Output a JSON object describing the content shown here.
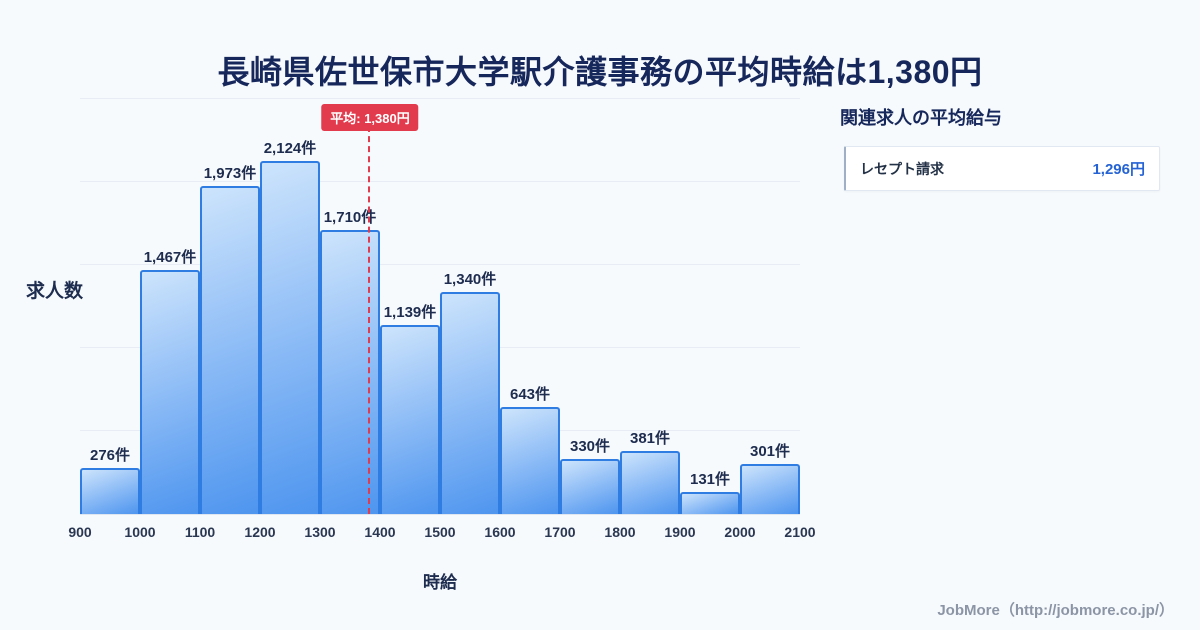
{
  "page": {
    "title": "長崎県佐世保市大学駅介護事務の平均時給は1,380円",
    "footer": "JobMore（http://jobmore.co.jp/）"
  },
  "chart_data": {
    "type": "bar",
    "title": "長崎県佐世保市大学駅介護事務の平均時給は1,380円",
    "xlabel": "時給",
    "ylabel": "求人数",
    "bins": [
      900,
      1000,
      1100,
      1200,
      1300,
      1400,
      1500,
      1600,
      1700,
      1800,
      1900,
      2000,
      2100
    ],
    "x_ticks": [
      "900",
      "1000",
      "1100",
      "1200",
      "1300",
      "1400",
      "1500",
      "1600",
      "1700",
      "1800",
      "1900",
      "2000",
      "2100"
    ],
    "values": [
      276,
      1467,
      1973,
      2124,
      1710,
      1139,
      1340,
      643,
      330,
      381,
      131,
      301
    ],
    "bar_labels": [
      "276件",
      "1,467件",
      "1,973件",
      "2,124件",
      "1,710件",
      "1,139件",
      "1,340件",
      "643件",
      "330件",
      "381件",
      "131件",
      "301件"
    ],
    "average": {
      "value": 1380,
      "label": "平均: 1,380円"
    },
    "ylim": [
      0,
      2500
    ],
    "grid_step": 500,
    "grid": true,
    "legend": false
  },
  "side_panel": {
    "heading": "関連求人の平均給与",
    "items": [
      {
        "label": "レセプト請求",
        "value": "1,296円"
      }
    ]
  },
  "colors": {
    "background": "#f7fafc",
    "title_navy": "#16275b",
    "bar_fill_top": "#cde4fc",
    "bar_fill_bottom": "#4e95ef",
    "bar_border": "#2f7de2",
    "average_red": "#e23b4e",
    "value_blue": "#2563d4",
    "footer_gray": "#8b95a6"
  }
}
